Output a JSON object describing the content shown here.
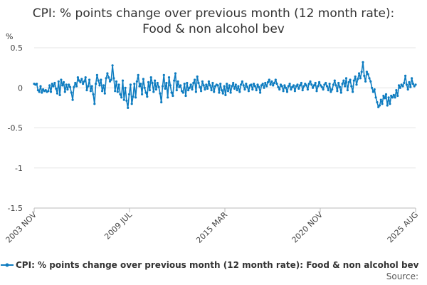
{
  "chart_data": {
    "type": "line",
    "title_lines": [
      "CPI: % points change over previous month (12 month rate):",
      "Food & non alcohol bev"
    ],
    "ylabel": "%",
    "xlabel": "",
    "ylim": [
      -1.5,
      0.5
    ],
    "yticks": [
      {
        "value": 0.5,
        "label": "0.5"
      },
      {
        "value": 0,
        "label": "0"
      },
      {
        "value": -0.5,
        "label": "-0.5"
      },
      {
        "value": -1,
        "label": "-1"
      },
      {
        "value": -1.5,
        "label": "-1.5"
      }
    ],
    "xticks": [
      "2003 NOV",
      "2009 JUL",
      "2015 MAR",
      "2020 NOV",
      "2025 AUG"
    ],
    "grid": true,
    "legend_position": "bottom",
    "series": [
      {
        "name": "CPI: % points change over previous month (12 month rate): Food & non alcohol bev",
        "color": "#0e7cc0",
        "x_start": "2003 NOV",
        "x_end": "2025 AUG",
        "values": [
          0.05,
          0.04,
          0.05,
          -0.03,
          -0.05,
          0.02,
          -0.06,
          -0.02,
          -0.04,
          -0.03,
          -0.05,
          -0.04,
          0.03,
          -0.05,
          0.05,
          0.02,
          0.06,
          -0.01,
          -0.07,
          0.08,
          -0.09,
          0.1,
          0.03,
          0.07,
          -0.05,
          0.04,
          -0.02,
          0.04,
          0.01,
          -0.06,
          -0.15,
          0.01,
          0.06,
          0.02,
          0.13,
          0.09,
          0.07,
          0.11,
          0.05,
          0.08,
          0.13,
          -0.03,
          0.02,
          0.1,
          -0.04,
          0.02,
          -0.08,
          -0.2,
          0.05,
          0.16,
          0.09,
          0.03,
          0.1,
          -0.04,
          0.03,
          -0.07,
          0.12,
          0.18,
          0.13,
          0.08,
          0.1,
          0.28,
          0.12,
          -0.04,
          0.08,
          -0.05,
          0.04,
          -0.08,
          -0.12,
          0.09,
          -0.15,
          0.0,
          -0.16,
          -0.25,
          -0.08,
          0.04,
          -0.2,
          -0.11,
          0.05,
          -0.12,
          0.08,
          0.16,
          0.02,
          0.05,
          -0.08,
          0.11,
          0.0,
          -0.06,
          -0.11,
          0.07,
          -0.03,
          0.13,
          0.06,
          -0.05,
          0.09,
          -0.02,
          0.06,
          0.01,
          -0.07,
          -0.18,
          0.02,
          0.16,
          -0.01,
          0.06,
          -0.12,
          0.13,
          0.03,
          -0.06,
          -0.1,
          0.09,
          0.18,
          -0.03,
          0.08,
          0.01,
          0.03,
          -0.04,
          -0.06,
          0.05,
          -0.1,
          0.06,
          -0.03,
          0.0,
          0.04,
          -0.02,
          0.06,
          0.1,
          -0.05,
          0.14,
          0.06,
          0.01,
          -0.04,
          0.08,
          0.03,
          -0.02,
          0.04,
          -0.01,
          0.08,
          0.03,
          -0.03,
          0.06,
          -0.05,
          0.02,
          0.04,
          0.03,
          -0.06,
          0.05,
          -0.03,
          -0.07,
          0.02,
          -0.09,
          0.05,
          -0.04,
          0.03,
          -0.06,
          0.02,
          0.06,
          -0.01,
          0.04,
          -0.03,
          0.02,
          -0.05,
          0.04,
          0.08,
          0.03,
          -0.02,
          0.05,
          0.01,
          -0.04,
          0.03,
          0.04,
          -0.02,
          0.05,
          0.02,
          -0.03,
          0.04,
          0.01,
          -0.06,
          0.03,
          0.05,
          0.0,
          0.06,
          0.02,
          0.07,
          0.1,
          0.04,
          0.08,
          0.03,
          0.06,
          0.1,
          0.05,
          0.01,
          -0.02,
          0.04,
          0.02,
          -0.04,
          0.03,
          0.0,
          -0.05,
          0.02,
          0.05,
          -0.02,
          0.01,
          0.03,
          -0.04,
          0.02,
          0.04,
          -0.01,
          0.03,
          0.06,
          -0.03,
          0.02,
          0.05,
          0.03,
          -0.02,
          0.05,
          0.08,
          0.04,
          0.0,
          0.03,
          0.06,
          -0.04,
          0.02,
          0.07,
          0.03,
          0.01,
          -0.02,
          0.04,
          0.06,
          0.02,
          -0.03,
          0.05,
          -0.05,
          -0.02,
          0.04,
          0.09,
          0.03,
          -0.04,
          0.06,
          0.01,
          -0.06,
          0.05,
          0.09,
          0.02,
          0.12,
          -0.03,
          0.07,
          0.1,
          0.02,
          -0.05,
          0.09,
          0.14,
          0.04,
          0.11,
          0.18,
          0.12,
          0.2,
          0.32,
          0.15,
          0.08,
          0.2,
          0.17,
          0.12,
          0.08,
          0.0,
          -0.05,
          -0.02,
          -0.12,
          -0.18,
          -0.24,
          -0.22,
          -0.15,
          -0.2,
          -0.1,
          -0.13,
          -0.08,
          -0.22,
          -0.12,
          -0.2,
          -0.1,
          -0.12,
          -0.09,
          -0.12,
          -0.03,
          -0.1,
          0.03,
          0.0,
          0.04,
          0.02,
          0.06,
          0.15,
          0.04,
          -0.02,
          0.07,
          0.01,
          0.12,
          0.05,
          0.02,
          0.04
        ]
      }
    ]
  },
  "source_label": "Source:"
}
